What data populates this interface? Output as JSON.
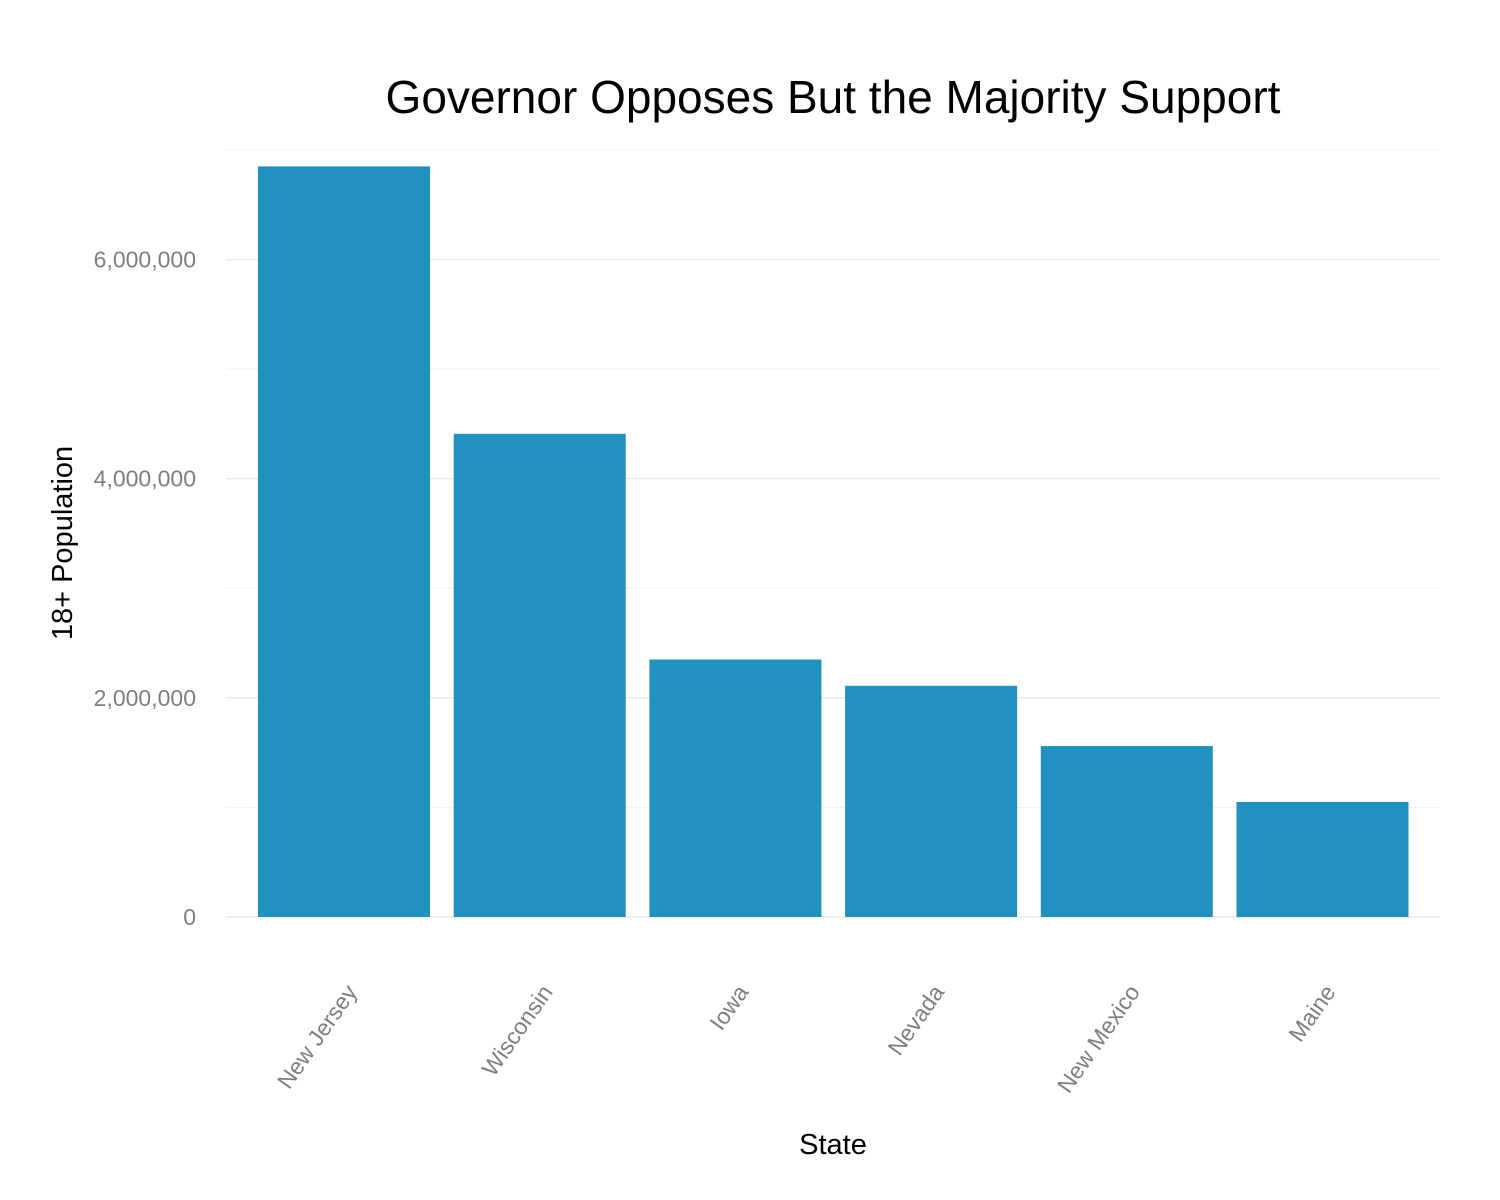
{
  "chart_data": {
    "type": "bar",
    "title": "Governor Opposes But the Majority Support",
    "xlabel": "State",
    "ylabel": "18+ Population",
    "categories": [
      "New Jersey",
      "Wisconsin",
      "Iowa",
      "Nevada",
      "New Mexico",
      "Maine"
    ],
    "values": [
      6850000,
      4410000,
      2350000,
      2110000,
      1560000,
      1050000
    ],
    "ylim": [
      0,
      7000000
    ],
    "y_ticks": [
      0,
      2000000,
      4000000,
      6000000
    ],
    "y_tick_labels": [
      "0",
      "2,000,000",
      "4,000,000",
      "6,000,000"
    ],
    "y_minor_ticks": [
      1000000,
      3000000,
      5000000,
      7000000
    ],
    "grid": true,
    "bar_color": "#2191c0"
  }
}
